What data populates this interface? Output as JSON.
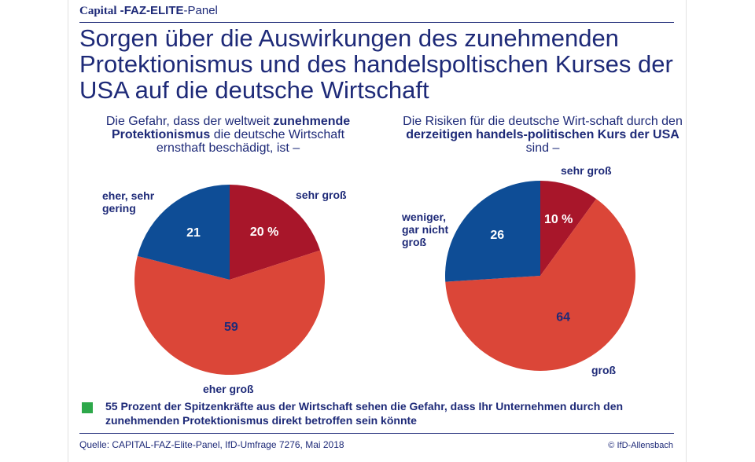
{
  "header": {
    "capital": "Capital",
    "dash": " -",
    "faz_elite": "FAZ-ELITE",
    "panel": "-Panel"
  },
  "title": "Sorgen über die Auswirkungen des zunehmenden Protektionismus und des handelspoltischen Kurses der USA auf die deutsche Wirtschaft",
  "chart_data": [
    {
      "type": "pie",
      "question_parts": [
        {
          "text": "Die Gefahr, dass der weltweit ",
          "bold": false
        },
        {
          "text": "zunehmende Protektionismus",
          "bold": true
        },
        {
          "text": " die deutsche Wirtschaft ernsthaft beschädigt, ist –",
          "bold": false
        }
      ],
      "unit": "%",
      "slices": [
        {
          "label": "sehr groß",
          "value": 20,
          "display": "20 %",
          "color": "#a8162a",
          "text_color": "#ffffff"
        },
        {
          "label": "eher groß",
          "value": 59,
          "display": "59",
          "color": "#db4638",
          "text_color": "#1e2a78"
        },
        {
          "label": "eher, sehr gering",
          "value": 21,
          "display": "21",
          "color": "#0e4d96",
          "text_color": "#ffffff"
        }
      ]
    },
    {
      "type": "pie",
      "question_parts": [
        {
          "text": "Die Risiken für die deutsche Wirt-schaft durch den ",
          "bold": false
        },
        {
          "text": "derzeitigen handels-politischen Kurs der USA",
          "bold": true
        },
        {
          "text": " sind –",
          "bold": false
        }
      ],
      "unit": "%",
      "slices": [
        {
          "label": "sehr groß",
          "value": 10,
          "display": "10 %",
          "color": "#a8162a",
          "text_color": "#ffffff"
        },
        {
          "label": "groß",
          "value": 64,
          "display": "64",
          "color": "#db4638",
          "text_color": "#1e2a78"
        },
        {
          "label": "weniger, gar nicht groß",
          "value": 26,
          "display": "26",
          "color": "#0e4d96",
          "text_color": "#ffffff"
        }
      ]
    }
  ],
  "note": {
    "text": "55 Prozent der Spitzenkräfte aus der Wirtschaft sehen die Gefahr, dass Ihr Unternehmen durch den zunehmenden Protektionismus direkt betroffen sein könnte",
    "color": "#2da84a"
  },
  "footer": {
    "source": "Quelle: CAPITAL-FAZ-Elite-Panel, IfD-Umfrage 7276, Mai 2018",
    "copyright": "© IfD-Allensbach"
  }
}
